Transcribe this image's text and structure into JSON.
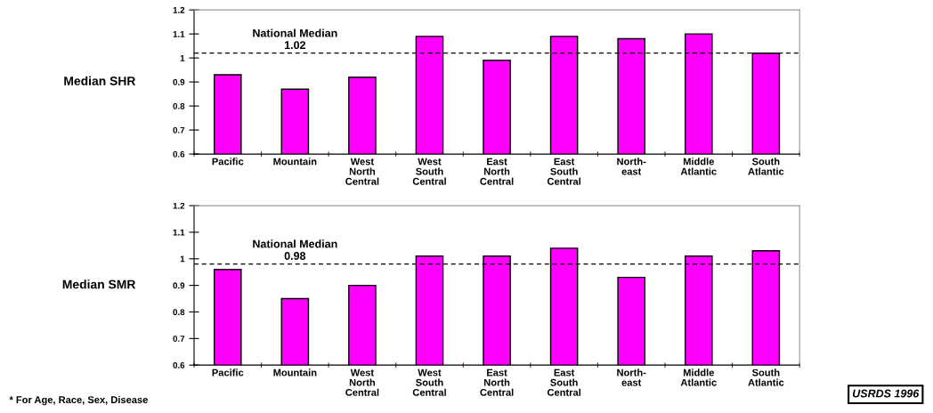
{
  "chart_data": [
    {
      "type": "bar",
      "ylabel": "Median SHR",
      "categories": [
        "Pacific",
        "Mountain",
        "West\nNorth\nCentral",
        "West\nSouth\nCentral",
        "East\nNorth\nCentral",
        "East\nSouth\nCentral",
        "North-\neast",
        "Middle\nAtlantic",
        "South\nAtlantic"
      ],
      "values": [
        0.93,
        0.87,
        0.92,
        1.09,
        0.99,
        1.09,
        1.08,
        1.1,
        1.02
      ],
      "color": "#ff00ff",
      "ylim": [
        0.6,
        1.2
      ],
      "yticks": [
        0.6,
        0.7,
        0.8,
        0.9,
        1,
        1.1,
        1.2
      ],
      "grid": false,
      "legend": false,
      "ref_lines": [
        {
          "axis": "y",
          "value": 1.02,
          "label": "National Median\n1.02",
          "color": "#000000",
          "line_style": "dashed"
        }
      ]
    },
    {
      "type": "bar",
      "ylabel": "Median SMR",
      "categories": [
        "Pacific",
        "Mountain",
        "West\nNorth\nCentral",
        "West\nSouth\nCentral",
        "East\nNorth\nCentral",
        "East\nSouth\nCentral",
        "North-\neast",
        "Middle\nAtlantic",
        "South\nAtlantic"
      ],
      "values": [
        0.96,
        0.85,
        0.9,
        1.01,
        1.01,
        1.04,
        0.93,
        1.01,
        1.03
      ],
      "color": "#ff00ff",
      "ylim": [
        0.6,
        1.2
      ],
      "yticks": [
        0.6,
        0.7,
        0.8,
        0.9,
        1,
        1.1,
        1.2
      ],
      "grid": false,
      "legend": false,
      "ref_lines": [
        {
          "axis": "y",
          "value": 0.98,
          "label": "National Median\n0.98",
          "color": "#000000",
          "line_style": "dashed"
        }
      ],
      "annotations": [
        "* For Age, Race, Sex, Disease",
        "USRDS 1996"
      ]
    }
  ]
}
